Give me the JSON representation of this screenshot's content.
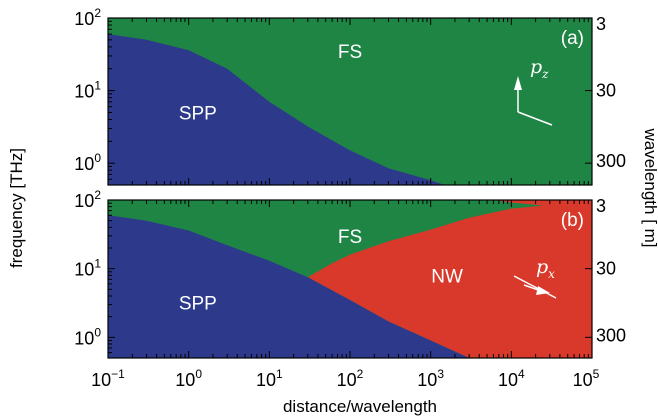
{
  "colors": {
    "SPP": "#2d3a8c",
    "FS": "#1f8544",
    "NW": "#d8392b",
    "annotation": "#ffffff"
  },
  "chart_data": [
    {
      "type": "area",
      "panel_label": "(a)",
      "x_scale": "log",
      "y_scale": "log",
      "xlim": [
        0.1,
        100000
      ],
      "ylim": [
        0.5,
        100
      ],
      "x_ticks": [
        0.1,
        1,
        10,
        100,
        1000,
        10000,
        100000
      ],
      "y_ticks": [
        1,
        10,
        100
      ],
      "y_tick_labels": [
        {
          "base": "10",
          "exp": "0"
        },
        {
          "base": "10",
          "exp": "1"
        },
        {
          "base": "10",
          "exp": "2"
        }
      ],
      "right_ticks": [
        "3",
        "30",
        "300"
      ],
      "regions": [
        {
          "name": "SPP",
          "label": "SPP",
          "color": "#2d3a8c"
        },
        {
          "name": "FS",
          "label": "FS",
          "color": "#1f8544"
        }
      ],
      "boundaries": {
        "spp_fs": [
          [
            0.1,
            60
          ],
          [
            0.3,
            50
          ],
          [
            1,
            36
          ],
          [
            3,
            20
          ],
          [
            10,
            7
          ],
          [
            30,
            3.2
          ],
          [
            100,
            1.5
          ],
          [
            300,
            0.85
          ],
          [
            1000,
            0.58
          ],
          [
            1500,
            0.5
          ]
        ]
      },
      "polarization": {
        "symbol": "p",
        "subscript": "z"
      }
    },
    {
      "type": "area",
      "panel_label": "(b)",
      "x_scale": "log",
      "y_scale": "log",
      "xlim": [
        0.1,
        100000
      ],
      "ylim": [
        0.5,
        100
      ],
      "x_ticks": [
        0.1,
        1,
        10,
        100,
        1000,
        10000,
        100000
      ],
      "x_tick_labels": [
        {
          "base": "10",
          "exp": "−1"
        },
        {
          "base": "10",
          "exp": "0"
        },
        {
          "base": "10",
          "exp": "1"
        },
        {
          "base": "10",
          "exp": "2"
        },
        {
          "base": "10",
          "exp": "3"
        },
        {
          "base": "10",
          "exp": "4"
        },
        {
          "base": "10",
          "exp": "5"
        }
      ],
      "y_ticks": [
        1,
        10,
        100
      ],
      "y_tick_labels": [
        {
          "base": "10",
          "exp": "0"
        },
        {
          "base": "10",
          "exp": "1"
        },
        {
          "base": "10",
          "exp": "2"
        }
      ],
      "right_ticks": [
        "3",
        "30",
        "300"
      ],
      "regions": [
        {
          "name": "SPP",
          "label": "SPP",
          "color": "#2d3a8c"
        },
        {
          "name": "FS",
          "label": "FS",
          "color": "#1f8544"
        },
        {
          "name": "NW",
          "label": "NW",
          "color": "#d8392b"
        }
      ],
      "boundaries": {
        "spp_upper": [
          [
            0.1,
            60
          ],
          [
            0.3,
            50
          ],
          [
            1,
            36
          ],
          [
            3,
            22
          ],
          [
            10,
            13
          ],
          [
            30,
            7.5
          ],
          [
            100,
            3.5
          ],
          [
            300,
            1.7
          ],
          [
            1000,
            0.9
          ],
          [
            3000,
            0.5
          ]
        ],
        "nw_upper": [
          [
            30,
            7.5
          ],
          [
            60,
            12
          ],
          [
            100,
            16
          ],
          [
            300,
            25
          ],
          [
            1000,
            37
          ],
          [
            3000,
            55
          ],
          [
            10000,
            75
          ],
          [
            25000,
            83
          ],
          [
            10000,
            92
          ],
          [
            6000,
            100
          ]
        ]
      },
      "polarization": {
        "symbol": "p",
        "subscript": "x"
      }
    }
  ],
  "axes": {
    "xlabel": "distance/wavelength",
    "ylabel": "frequency [THz]",
    "right_ylabel": "wavelength [   m]"
  }
}
